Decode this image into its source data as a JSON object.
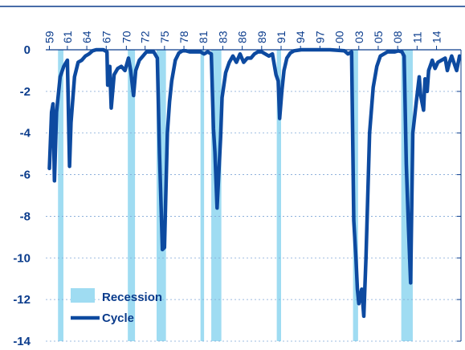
{
  "chart_data": {
    "type": "line",
    "title": "",
    "xlabel": "",
    "ylabel": "",
    "ylim": [
      -14,
      0
    ],
    "xlim": [
      1958.5,
      2016.2
    ],
    "y_ticks": [
      "0",
      "-2",
      "-4",
      "-6",
      "-8",
      "-10",
      "-12",
      "-14"
    ],
    "x_ticks": [
      "59",
      "61",
      "64",
      "67",
      "70",
      "72",
      "75",
      "78",
      "81",
      "83",
      "86",
      "89",
      "91",
      "94",
      "97",
      "00",
      "03",
      "05",
      "08",
      "11",
      "14"
    ],
    "x_tick_years": [
      1959,
      1961.5,
      1964.2,
      1966.9,
      1969.7,
      1972.3,
      1975,
      1977.7,
      1980.4,
      1983.1,
      1985.8,
      1988.5,
      1991.2,
      1993.9,
      1996.6,
      1999.3,
      2002,
      2004.7,
      2007.4,
      2010.1,
      2012.8
    ],
    "grid": "horizontal dashed",
    "legend": "bottom-left",
    "colors": {
      "line": "#0d4aa0",
      "recession": "#9fdcf2",
      "axis": "#0b3c8c",
      "text": "#0b3c8c",
      "grid": "#7fa6d6"
    },
    "series": [
      {
        "name": "Cycle",
        "x": [
          1959.0,
          1959.3,
          1959.5,
          1959.7,
          1960.0,
          1960.5,
          1961.0,
          1961.5,
          1961.8,
          1962.0,
          1962.5,
          1963.0,
          1963.5,
          1964.0,
          1964.5,
          1965.0,
          1965.5,
          1966.0,
          1966.5,
          1967.0,
          1967.1,
          1967.4,
          1967.6,
          1968.0,
          1968.5,
          1969.0,
          1969.5,
          1970.0,
          1970.3,
          1970.7,
          1971.0,
          1971.5,
          1972.0,
          1972.5,
          1973.0,
          1973.5,
          1974.0,
          1974.3,
          1974.7,
          1975.0,
          1975.4,
          1975.7,
          1976.0,
          1976.5,
          1977.0,
          1977.5,
          1978.0,
          1978.5,
          1979.0,
          1980.0,
          1980.5,
          1981.0,
          1981.5,
          1981.8,
          1982.0,
          1982.3,
          1982.8,
          1983.0,
          1983.5,
          1984.0,
          1984.5,
          1985.0,
          1985.5,
          1986.0,
          1986.5,
          1987.0,
          1987.5,
          1988.0,
          1988.5,
          1989.0,
          1989.5,
          1990.0,
          1990.5,
          1990.8,
          1991.0,
          1991.3,
          1991.6,
          1992.0,
          1992.5,
          1993.0,
          1994.0,
          1996.0,
          1998.0,
          2000.0,
          2000.5,
          2001.0,
          2001.3,
          2001.6,
          2001.8,
          2002.0,
          2002.4,
          2002.7,
          2003.0,
          2003.5,
          2004.0,
          2004.5,
          2005.0,
          2006.0,
          2007.0,
          2007.5,
          2008.0,
          2008.3,
          2008.6,
          2008.9,
          2009.2,
          2009.5,
          2010.0,
          2010.4,
          2010.6,
          2011.0,
          2011.2,
          2011.5,
          2011.7,
          2012.0,
          2012.2,
          2012.6,
          2013.0,
          2013.5,
          2014.0,
          2014.3,
          2014.6,
          2014.9,
          2015.2,
          2015.6,
          2016.0
        ],
        "y": [
          -5.7,
          -3.0,
          -2.6,
          -6.3,
          -3.0,
          -1.3,
          -0.8,
          -0.5,
          -5.6,
          -3.5,
          -1.3,
          -0.6,
          -0.5,
          -0.3,
          -0.2,
          -0.05,
          0,
          0,
          0,
          -0.1,
          -1.7,
          -0.8,
          -2.8,
          -1.2,
          -0.9,
          -0.8,
          -1.0,
          -0.4,
          -1.0,
          -2.2,
          -1.0,
          -0.5,
          -0.3,
          -0.1,
          -0.1,
          -0.1,
          -0.4,
          -5.0,
          -9.6,
          -9.5,
          -4.0,
          -2.5,
          -1.5,
          -0.5,
          -0.15,
          -0.05,
          -0.05,
          -0.1,
          -0.1,
          -0.1,
          -0.2,
          -0.1,
          -0.2,
          -3.8,
          -4.9,
          -7.6,
          -4.2,
          -2.3,
          -1.1,
          -0.6,
          -0.3,
          -0.6,
          -0.2,
          -0.6,
          -0.4,
          -0.4,
          -0.2,
          -0.1,
          -0.1,
          -0.2,
          -0.3,
          -0.2,
          -1.2,
          -1.5,
          -3.3,
          -2.0,
          -1.0,
          -0.4,
          -0.15,
          -0.05,
          0,
          0,
          0,
          -0.05,
          -0.2,
          -0.1,
          -8.2,
          -10.0,
          -11.5,
          -12.2,
          -11.5,
          -12.8,
          -10.0,
          -4.0,
          -1.8,
          -0.8,
          -0.3,
          -0.1,
          -0.1,
          -0.05,
          -0.1,
          -0.3,
          -5.5,
          -8.5,
          -11.2,
          -4.0,
          -2.5,
          -1.3,
          -2.2,
          -2.9,
          -1.4,
          -2.0,
          -1.0,
          -0.7,
          -0.5,
          -0.9,
          -0.6,
          -0.5,
          -0.4,
          -1.0,
          -0.6,
          -0.3,
          -0.6,
          -1.0,
          -0.3
        ]
      }
    ],
    "recessions": [
      [
        1960.2,
        1960.95
      ],
      [
        1969.9,
        1970.9
      ],
      [
        1973.9,
        1975.2
      ],
      [
        1980.0,
        1980.5
      ],
      [
        1981.5,
        1982.9
      ],
      [
        1990.6,
        1991.2
      ],
      [
        2001.2,
        2001.9
      ],
      [
        2007.9,
        2009.5
      ]
    ],
    "legend_entries": [
      "Recession",
      "Cycle"
    ]
  }
}
